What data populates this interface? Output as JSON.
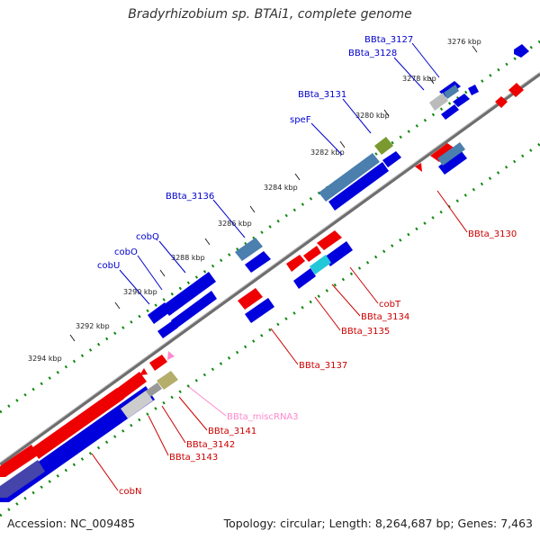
{
  "title": "Bradyrhizobium sp. BTAi1, complete genome",
  "accession": "Accession: NC_009485",
  "summary": "Topology: circular; Length: 8,264,687 bp; Genes: 7,463",
  "colors": {
    "forward_gene": "#0000dd",
    "reverse_gene": "#ee0000",
    "label_forward": "#0000cc",
    "label_reverse": "#cc0000",
    "label_rna": "#ff88cc",
    "backbone": "#7a7a7a",
    "dots": "#118811"
  },
  "kbp_ticks": [
    "3276 kbp",
    "3278 kbp",
    "3280 kbp",
    "3282 kbp",
    "3284 kbp",
    "3286 kbp",
    "3288 kbp",
    "3290 kbp",
    "3292 kbp",
    "3294 kbp"
  ],
  "top_labels": [
    "BBta_3127",
    "BBta_3128",
    "BBta_3131",
    "speF",
    "BBta_3136",
    "cobQ",
    "cobO",
    "cobU"
  ],
  "bottom_labels": [
    "BBta_3130",
    "cobT",
    "BBta_3134",
    "BBta_3135",
    "BBta_3137",
    "BBta_miscRNA3",
    "BBta_3141",
    "BBta_3142",
    "BBta_3143",
    "cobN"
  ]
}
